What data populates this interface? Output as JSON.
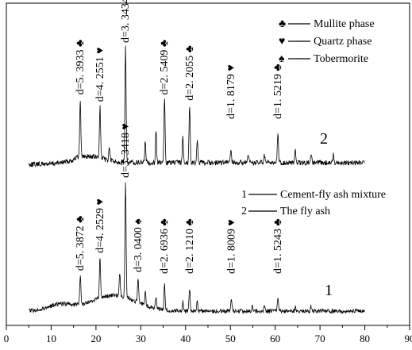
{
  "chart_data": {
    "type": "line",
    "xlim": [
      0,
      90
    ],
    "x_ticks": [
      "0",
      "10",
      "20",
      "30",
      "40",
      "50",
      "60",
      "70",
      "80",
      "90"
    ],
    "grid": false,
    "legend_phases": [
      {
        "symbol": "♣",
        "label": "Mullite phase"
      },
      {
        "symbol": "♥",
        "label": "Quartz phase"
      },
      {
        "symbol": "♠",
        "label": "Tobermorite"
      }
    ],
    "legend_samples": [
      {
        "id": "1",
        "label": "Cement-fly ash mixture"
      },
      {
        "id": "2",
        "label": "The fly ash"
      }
    ],
    "series": [
      {
        "id": "2",
        "label": "2",
        "x_range": [
          5,
          80
        ],
        "peaks": [
          {
            "x": 16.5,
            "h": 0.5,
            "text": "d=5. 3933",
            "symbol": "♣"
          },
          {
            "x": 20.9,
            "h": 0.45,
            "text": "d=4. 2551",
            "symbol": "♥"
          },
          {
            "x": 26.6,
            "h": 1.0,
            "text": "d=3. 3434",
            "symbol": "♥"
          },
          {
            "x": 35.3,
            "h": 0.55,
            "text": "d=2. 5409",
            "symbol": "♣"
          },
          {
            "x": 40.9,
            "h": 0.5,
            "text": "d=2. 2055",
            "symbol": "♣"
          },
          {
            "x": 50.1,
            "h": 0.12,
            "text": "d=1. 8179",
            "symbol": "♥"
          },
          {
            "x": 60.6,
            "h": 0.27,
            "text": "d=1. 5219",
            "symbol": "♣"
          }
        ]
      },
      {
        "id": "1",
        "label": "1",
        "x_range": [
          5,
          80
        ],
        "peaks": [
          {
            "x": 16.5,
            "h": 0.25,
            "text": "d=5. 3872",
            "symbol": "♣"
          },
          {
            "x": 20.9,
            "h": 0.35,
            "text": "d=4. 2529",
            "symbol": "♥"
          },
          {
            "x": 26.6,
            "h": 1.0,
            "text": "d=3. 3418",
            "symbol": "♥"
          },
          {
            "x": 29.4,
            "h": 0.22,
            "text": "d=3. 0400",
            "symbol": "♠"
          },
          {
            "x": 35.3,
            "h": 0.22,
            "text": "d=2. 6936",
            "symbol": "♣"
          },
          {
            "x": 40.9,
            "h": 0.2,
            "text": "d=2. 1210",
            "symbol": "♣"
          },
          {
            "x": 50.2,
            "h": 0.12,
            "text": "d=1. 8009",
            "symbol": "♥"
          },
          {
            "x": 60.6,
            "h": 0.12,
            "text": "d=1. 5243",
            "symbol": "♣"
          }
        ]
      }
    ]
  }
}
